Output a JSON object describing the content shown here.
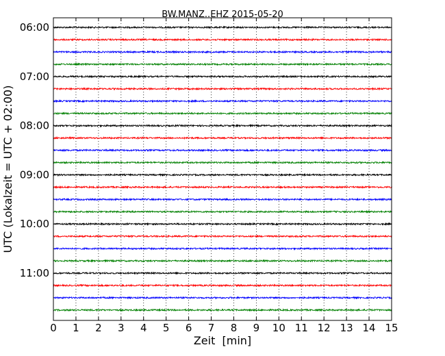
{
  "chart_data": {
    "type": "line",
    "title": "BW.MANZ..EHZ 2015-05-20",
    "xlabel": "Zeit  [min]",
    "ylabel": "UTC (Lokalzeit = UTC + 02:00)",
    "xlim": [
      0,
      15
    ],
    "x_ticks": [
      0,
      1,
      2,
      3,
      4,
      5,
      6,
      7,
      8,
      9,
      10,
      11,
      12,
      13,
      14,
      15
    ],
    "x_tick_labels": [
      "0",
      "1",
      "2",
      "3",
      "4",
      "5",
      "6",
      "7",
      "8",
      "9",
      "10",
      "11",
      "12",
      "13",
      "14",
      "15"
    ],
    "y_tick_labels": [
      "06:00",
      "07:00",
      "08:00",
      "09:00",
      "10:00",
      "11:00"
    ],
    "y_axis_inverted": true,
    "grid": "vertical dotted",
    "trace_minutes": 15,
    "trace_colors": [
      "#000000",
      "#ff0000",
      "#0000ff",
      "#008000"
    ],
    "traces_start": [
      "06:00",
      "06:15",
      "06:30",
      "06:45",
      "07:00",
      "07:15",
      "07:30",
      "07:45",
      "08:00",
      "08:15",
      "08:30",
      "08:45",
      "09:00",
      "09:15",
      "09:30",
      "09:45",
      "10:00",
      "10:15",
      "10:30",
      "10:45",
      "11:00",
      "11:15",
      "11:30",
      "11:45"
    ]
  }
}
